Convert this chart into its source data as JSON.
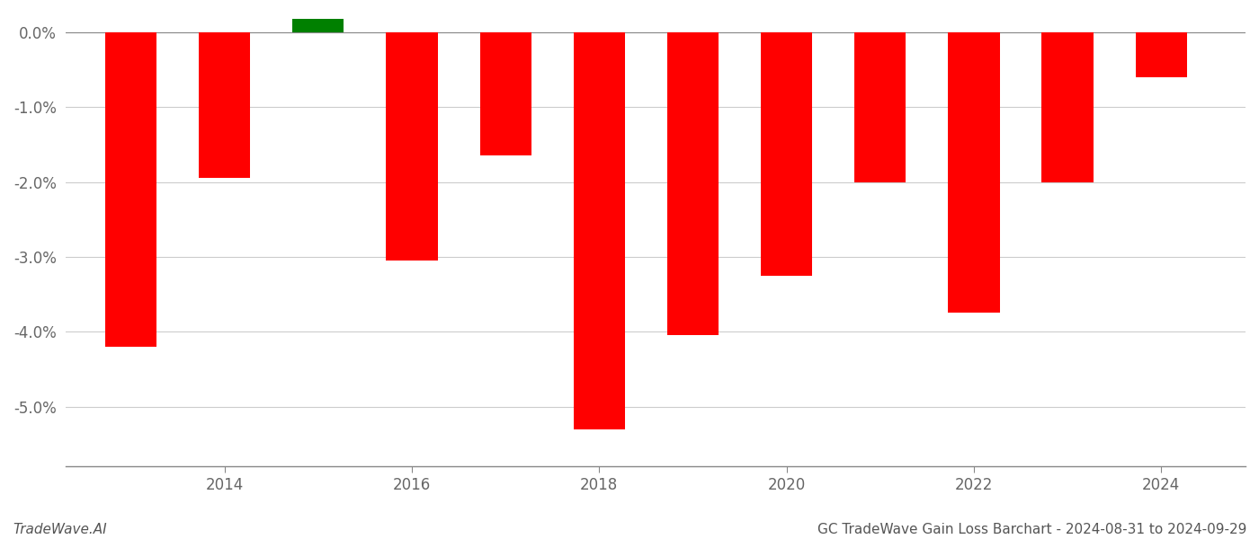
{
  "years": [
    2013,
    2014,
    2015,
    2016,
    2017,
    2018,
    2019,
    2020,
    2021,
    2022,
    2023,
    2024
  ],
  "values": [
    -0.042,
    -0.0195,
    0.003,
    -0.0305,
    -0.0165,
    -0.053,
    -0.0405,
    -0.0325,
    -0.02,
    -0.0375,
    -0.02,
    -0.006
  ],
  "colors": [
    "#ff0000",
    "#ff0000",
    "#008000",
    "#ff0000",
    "#ff0000",
    "#ff0000",
    "#ff0000",
    "#ff0000",
    "#ff0000",
    "#ff0000",
    "#ff0000",
    "#ff0000"
  ],
  "title": "GC TradeWave Gain Loss Barchart - 2024-08-31 to 2024-09-29",
  "watermark": "TradeWave.AI",
  "ylim_min": -0.058,
  "ylim_max": 0.0018,
  "yticks": [
    0.0,
    -0.01,
    -0.02,
    -0.03,
    -0.04,
    -0.05
  ],
  "xlim_min": 2012.3,
  "xlim_max": 2024.9,
  "background_color": "#ffffff",
  "grid_color": "#cccccc",
  "bar_width": 0.55
}
